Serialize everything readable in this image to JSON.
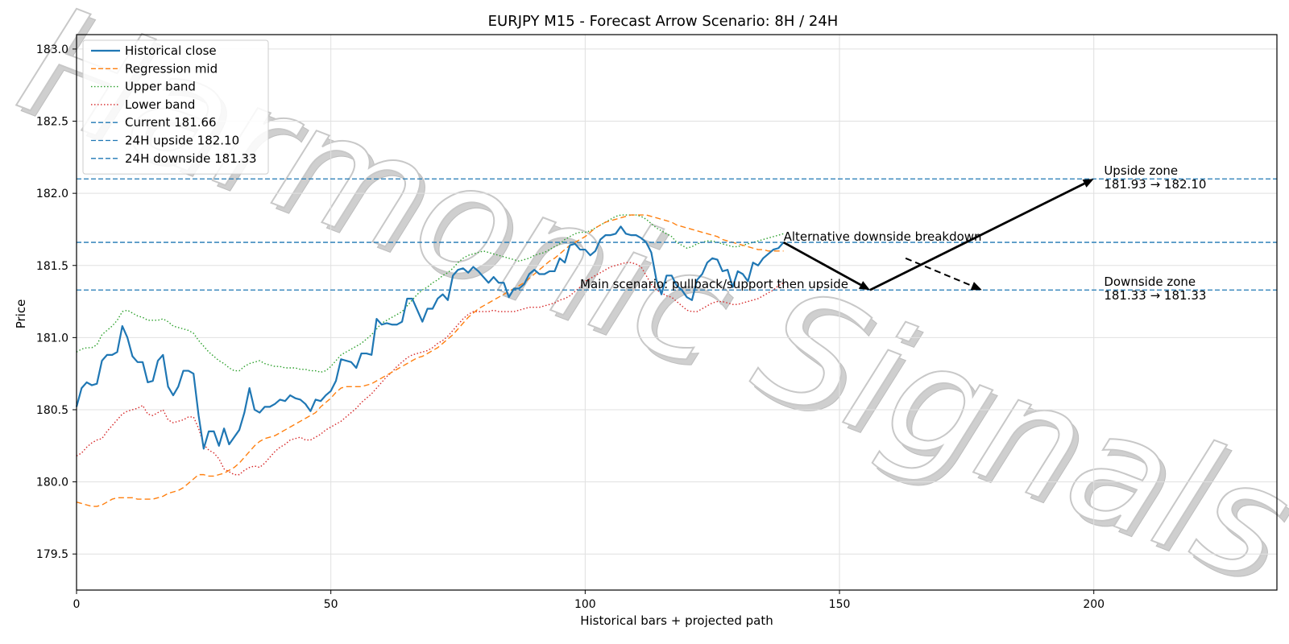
{
  "chart_data": {
    "type": "line",
    "title": "EURJPY M15 - Forecast Arrow Scenario: 8H / 24H",
    "xlabel": "Historical bars + projected path",
    "ylabel": "Price",
    "xlim": [
      0,
      236
    ],
    "ylim": [
      179.25,
      183.1
    ],
    "xticks": [
      0,
      50,
      100,
      150,
      200
    ],
    "yticks": [
      179.5,
      180.0,
      180.5,
      181.0,
      181.5,
      182.0,
      182.5,
      183.0
    ],
    "grid": true,
    "legend_position": "upper-left",
    "watermark": "Harmonic Signals",
    "colors": {
      "historical": "#1f77b4",
      "regression": "#ff7f0e",
      "upper": "#2ca02c",
      "lower": "#d62728",
      "hline": "#1f77b4",
      "arrow": "#000000",
      "grid": "#e0e0e0",
      "watermark": "#d9d9d9"
    },
    "series": [
      {
        "name": "Historical close",
        "style": "solid",
        "x_start": 0,
        "values": [
          180.52,
          180.65,
          180.69,
          180.67,
          180.68,
          180.84,
          180.88,
          180.88,
          180.9,
          181.08,
          181.0,
          180.87,
          180.83,
          180.83,
          180.69,
          180.7,
          180.84,
          180.88,
          180.66,
          180.6,
          180.66,
          180.77,
          180.77,
          180.75,
          180.46,
          180.23,
          180.35,
          180.35,
          180.25,
          180.37,
          180.26,
          180.31,
          180.36,
          180.48,
          180.65,
          180.5,
          180.48,
          180.52,
          180.52,
          180.54,
          180.57,
          180.56,
          180.6,
          180.58,
          180.57,
          180.54,
          180.49,
          180.57,
          180.56,
          180.6,
          180.63,
          180.7,
          180.85,
          180.84,
          180.83,
          180.79,
          180.89,
          180.89,
          180.88,
          181.13,
          181.09,
          181.1,
          181.09,
          181.09,
          181.11,
          181.27,
          181.27,
          181.19,
          181.11,
          181.2,
          181.2,
          181.27,
          181.3,
          181.26,
          181.43,
          181.47,
          181.48,
          181.45,
          181.49,
          181.46,
          181.42,
          181.38,
          181.42,
          181.38,
          181.38,
          181.28,
          181.34,
          181.34,
          181.37,
          181.44,
          181.47,
          181.44,
          181.44,
          181.46,
          181.46,
          181.55,
          181.52,
          181.64,
          181.65,
          181.61,
          181.61,
          181.57,
          181.6,
          181.68,
          181.71,
          181.71,
          181.72,
          181.77,
          181.72,
          181.71,
          181.71,
          181.69,
          181.66,
          181.59,
          181.4,
          181.3,
          181.43,
          181.43,
          181.36,
          181.33,
          181.28,
          181.26,
          181.4,
          181.44,
          181.52,
          181.55,
          181.54,
          181.46,
          181.47,
          181.35,
          181.46,
          181.44,
          181.39,
          181.52,
          181.5,
          181.55,
          181.58,
          181.61,
          181.62,
          181.66
        ]
      },
      {
        "name": "Regression mid",
        "style": "dashed",
        "x_start": 0,
        "values": [
          179.86,
          179.85,
          179.84,
          179.83,
          179.83,
          179.84,
          179.86,
          179.88,
          179.89,
          179.89,
          179.89,
          179.89,
          179.88,
          179.88,
          179.88,
          179.88,
          179.89,
          179.9,
          179.92,
          179.93,
          179.94,
          179.96,
          179.99,
          180.02,
          180.05,
          180.05,
          180.04,
          180.04,
          180.05,
          180.06,
          180.08,
          180.1,
          180.13,
          180.17,
          180.21,
          180.25,
          180.28,
          180.3,
          180.31,
          180.32,
          180.34,
          180.36,
          180.38,
          180.4,
          180.42,
          180.44,
          180.46,
          180.48,
          180.52,
          180.55,
          180.58,
          180.62,
          180.65,
          180.66,
          180.66,
          180.66,
          180.66,
          180.67,
          180.68,
          180.7,
          180.72,
          180.74,
          180.76,
          180.78,
          180.8,
          180.82,
          180.84,
          180.86,
          180.87,
          180.89,
          180.91,
          180.93,
          180.96,
          180.99,
          181.02,
          181.06,
          181.1,
          181.14,
          181.17,
          181.2,
          181.22,
          181.24,
          181.26,
          181.28,
          181.3,
          181.32,
          181.34,
          181.36,
          181.38,
          181.41,
          181.44,
          181.47,
          181.5,
          181.53,
          181.55,
          181.58,
          181.61,
          181.64,
          181.66,
          181.68,
          181.7,
          181.73,
          181.76,
          181.78,
          181.8,
          181.81,
          181.82,
          181.83,
          181.84,
          181.85,
          181.85,
          181.85,
          181.85,
          181.84,
          181.83,
          181.82,
          181.81,
          181.8,
          181.78,
          181.77,
          181.76,
          181.75,
          181.74,
          181.73,
          181.72,
          181.71,
          181.7,
          181.68,
          181.67,
          181.66,
          181.65,
          181.64,
          181.63,
          181.62,
          181.61,
          181.61,
          181.6,
          181.6,
          181.6,
          181.6
        ]
      },
      {
        "name": "Upper band",
        "style": "dotted",
        "x_start": 0,
        "values": [
          180.9,
          180.92,
          180.93,
          180.93,
          180.95,
          181.02,
          181.05,
          181.08,
          181.12,
          181.18,
          181.19,
          181.17,
          181.15,
          181.14,
          181.12,
          181.12,
          181.12,
          181.13,
          181.11,
          181.08,
          181.07,
          181.06,
          181.05,
          181.03,
          180.98,
          180.94,
          180.9,
          180.87,
          180.84,
          180.82,
          180.79,
          180.77,
          180.77,
          180.8,
          180.82,
          180.83,
          180.84,
          180.82,
          180.81,
          180.8,
          180.8,
          180.79,
          180.79,
          180.79,
          180.78,
          180.78,
          180.77,
          180.77,
          180.76,
          180.77,
          180.8,
          180.84,
          180.88,
          180.9,
          180.92,
          180.94,
          180.96,
          180.99,
          181.02,
          181.06,
          181.1,
          181.12,
          181.14,
          181.16,
          181.18,
          181.22,
          181.26,
          181.3,
          181.33,
          181.35,
          181.38,
          181.4,
          181.43,
          181.45,
          181.48,
          181.52,
          181.55,
          181.57,
          181.58,
          181.59,
          181.6,
          181.59,
          181.58,
          181.57,
          181.56,
          181.55,
          181.54,
          181.53,
          181.54,
          181.55,
          181.57,
          181.58,
          181.59,
          181.61,
          181.63,
          181.65,
          181.68,
          181.7,
          181.72,
          181.73,
          181.73,
          181.74,
          181.76,
          181.78,
          181.8,
          181.82,
          181.84,
          181.85,
          181.85,
          181.85,
          181.85,
          181.84,
          181.82,
          181.79,
          181.76,
          181.74,
          181.72,
          181.7,
          181.66,
          181.64,
          181.62,
          181.63,
          181.65,
          181.66,
          181.67,
          181.67,
          181.66,
          181.65,
          181.64,
          181.63,
          181.63,
          181.64,
          181.65,
          181.66,
          181.67,
          181.68,
          181.69,
          181.7,
          181.71,
          181.72
        ]
      },
      {
        "name": "Lower band",
        "style": "dotted",
        "x_start": 0,
        "values": [
          180.18,
          180.2,
          180.24,
          180.27,
          180.29,
          180.3,
          180.35,
          180.39,
          180.43,
          180.47,
          180.49,
          180.5,
          180.51,
          180.53,
          180.47,
          180.46,
          180.48,
          180.5,
          180.43,
          180.41,
          180.42,
          180.43,
          180.45,
          180.45,
          180.37,
          180.26,
          180.22,
          180.2,
          180.16,
          180.09,
          180.07,
          180.05,
          180.05,
          180.08,
          180.1,
          180.11,
          180.1,
          180.13,
          180.17,
          180.21,
          180.24,
          180.26,
          180.29,
          180.3,
          180.31,
          180.29,
          180.29,
          180.31,
          180.33,
          180.36,
          180.38,
          180.4,
          180.42,
          180.45,
          180.48,
          180.51,
          180.55,
          180.58,
          180.61,
          180.65,
          180.69,
          180.73,
          180.76,
          180.8,
          180.83,
          180.86,
          180.88,
          180.89,
          180.9,
          180.91,
          180.93,
          180.96,
          180.98,
          181.01,
          181.05,
          181.09,
          181.13,
          181.16,
          181.18,
          181.18,
          181.18,
          181.18,
          181.19,
          181.18,
          181.18,
          181.18,
          181.18,
          181.19,
          181.2,
          181.21,
          181.21,
          181.21,
          181.22,
          181.23,
          181.24,
          181.26,
          181.27,
          181.29,
          181.32,
          181.35,
          181.39,
          181.41,
          181.43,
          181.45,
          181.47,
          181.49,
          181.5,
          181.51,
          181.52,
          181.52,
          181.51,
          181.49,
          181.43,
          181.37,
          181.33,
          181.31,
          181.29,
          181.28,
          181.25,
          181.22,
          181.19,
          181.18,
          181.18,
          181.2,
          181.22,
          181.24,
          181.25,
          181.25,
          181.24,
          181.23,
          181.23,
          181.24,
          181.25,
          181.26,
          181.27,
          181.29,
          181.31,
          181.33,
          181.36,
          181.38
        ]
      }
    ],
    "hlines": [
      {
        "name": "Current 181.66",
        "y": 181.66
      },
      {
        "name": "24H upside 182.10",
        "y": 182.1
      },
      {
        "name": "24H downside 181.33",
        "y": 181.33
      }
    ],
    "arrows": [
      {
        "name": "main-leg-1",
        "from": [
          139,
          181.66
        ],
        "to": [
          156,
          181.33
        ],
        "style": "solid"
      },
      {
        "name": "main-leg-2",
        "from": [
          156,
          181.33
        ],
        "to": [
          200,
          182.1
        ],
        "style": "solid"
      },
      {
        "name": "alt-downside",
        "from": [
          163,
          181.55
        ],
        "to": [
          178,
          181.33
        ],
        "style": "dashed"
      }
    ],
    "annotations": [
      {
        "name": "main-scenario-label",
        "text": "Main scenario: pullback/support then upside",
        "x": 99,
        "y": 181.33
      },
      {
        "name": "alt-scenario-label",
        "text": "Alternative downside breakdown",
        "x": 139,
        "y": 181.66
      },
      {
        "name": "upside-zone-label",
        "lines": [
          "Upside zone",
          "181.93 → 182.10"
        ],
        "x": 202,
        "y": 182.1
      },
      {
        "name": "downside-zone-label",
        "lines": [
          "Downside zone",
          "181.33 → 181.33"
        ],
        "x": 202,
        "y": 181.33
      }
    ]
  }
}
